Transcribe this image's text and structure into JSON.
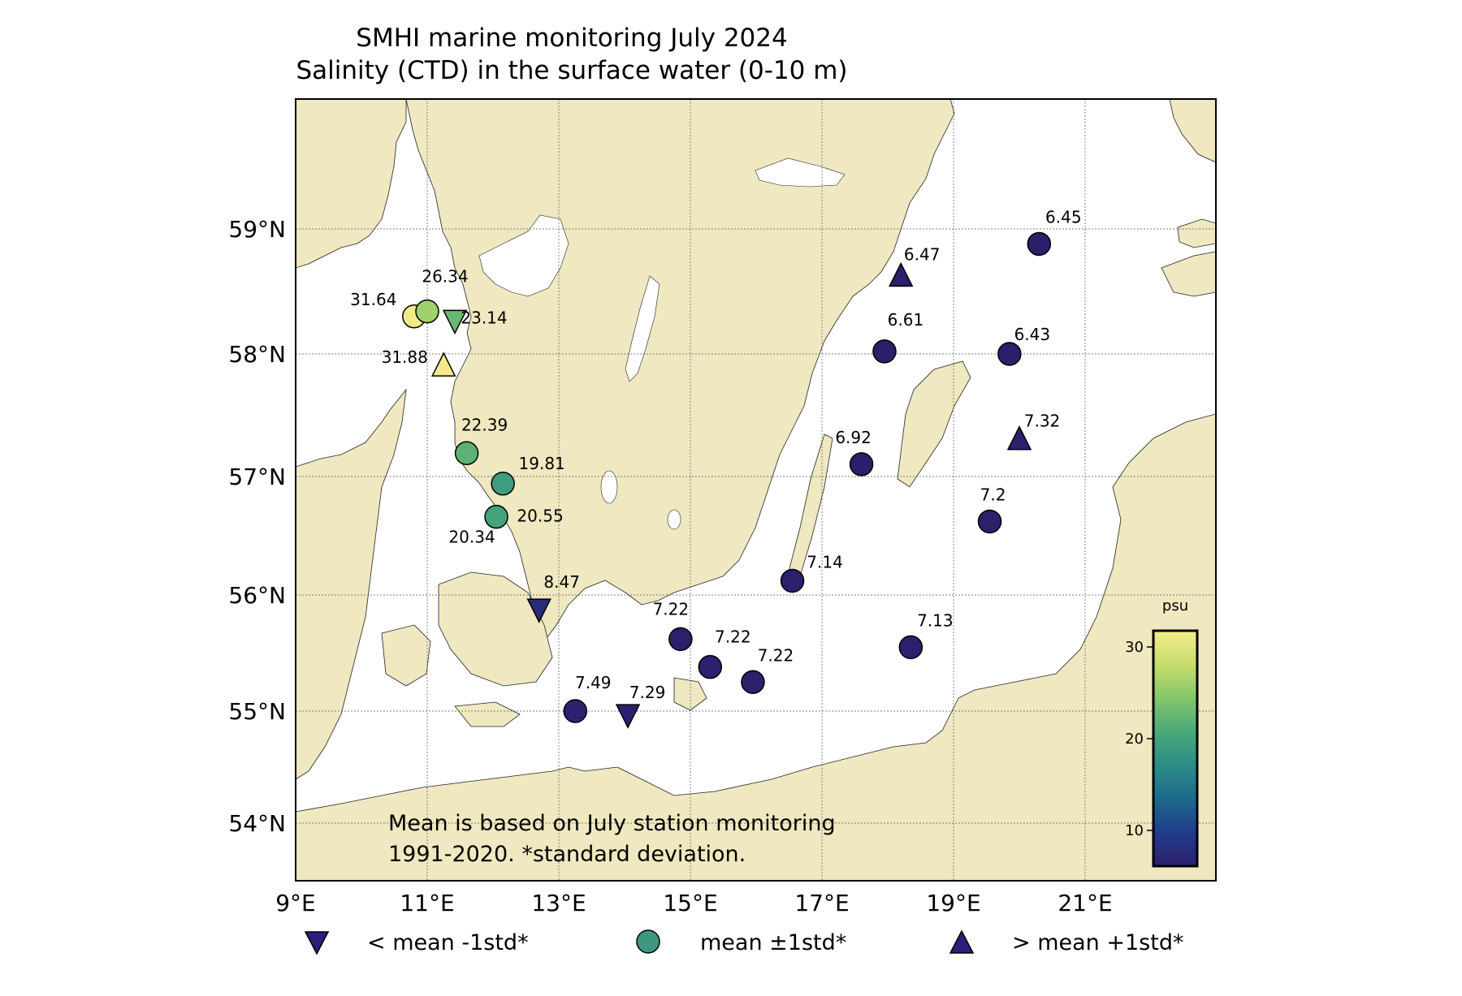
{
  "title": {
    "line1": "SMHI marine monitoring July 2024",
    "line2": "Salinity (CTD) in the surface water (0-10 m)"
  },
  "axes": {
    "lat_labels": [
      "59°N",
      "58°N",
      "57°N",
      "56°N",
      "55°N",
      "54°N"
    ],
    "lon_labels": [
      "9°E",
      "11°E",
      "13°E",
      "15°E",
      "17°E",
      "19°E",
      "21°E"
    ]
  },
  "note": {
    "line1": "Mean is based on July station monitoring",
    "line2": "1991-2020. *standard deviation."
  },
  "colorbar": {
    "unit": "psu",
    "ticks": [
      "30",
      "20",
      "10"
    ],
    "range": [
      7,
      32
    ],
    "colors": [
      "#2d1e6b",
      "#1f3d8a",
      "#1c6a8c",
      "#2c8d86",
      "#4aa97a",
      "#84c66a",
      "#c7dd6e",
      "#f5ec8c"
    ]
  },
  "legend": {
    "below": "< mean -1std*",
    "within": "mean ±1std*",
    "above": "> mean +1std*"
  },
  "chart_data": {
    "type": "scatter",
    "stations": [
      {
        "label": "6.45",
        "lon": 20.3,
        "lat": 58.88,
        "marker": "circle",
        "value": 6.45
      },
      {
        "label": "6.47",
        "lon": 18.2,
        "lat": 58.62,
        "marker": "triangle-up",
        "value": 6.47
      },
      {
        "label": "6.61",
        "lon": 17.95,
        "lat": 58.02,
        "marker": "circle",
        "value": 6.61
      },
      {
        "label": "6.43",
        "lon": 19.85,
        "lat": 58.0,
        "marker": "circle",
        "value": 6.43
      },
      {
        "label": "7.32",
        "lon": 20.0,
        "lat": 57.3,
        "marker": "triangle-up",
        "value": 7.32
      },
      {
        "label": "6.92",
        "lon": 17.6,
        "lat": 57.1,
        "marker": "circle",
        "value": 6.92
      },
      {
        "label": "7.2",
        "lon": 19.55,
        "lat": 56.62,
        "marker": "circle",
        "value": 7.2
      },
      {
        "label": "7.14",
        "lon": 16.55,
        "lat": 56.12,
        "marker": "circle",
        "value": 7.14
      },
      {
        "label": "7.13",
        "lon": 18.35,
        "lat": 55.55,
        "marker": "circle",
        "value": 7.13
      },
      {
        "label": "7.22",
        "lon": 14.85,
        "lat": 55.62,
        "marker": "circle",
        "value": 7.22
      },
      {
        "label": "7.22",
        "lon": 15.3,
        "lat": 55.38,
        "marker": "circle",
        "value": 7.22
      },
      {
        "label": "7.22",
        "lon": 15.95,
        "lat": 55.25,
        "marker": "circle",
        "value": 7.22
      },
      {
        "label": "7.49",
        "lon": 13.25,
        "lat": 55.0,
        "marker": "circle",
        "value": 7.49
      },
      {
        "label": "7.29",
        "lon": 14.05,
        "lat": 54.97,
        "marker": "triangle-down",
        "value": 7.29
      },
      {
        "label": "8.47",
        "lon": 12.7,
        "lat": 55.88,
        "marker": "triangle-down",
        "value": 8.47
      },
      {
        "label": "22.39",
        "lon": 11.6,
        "lat": 57.19,
        "marker": "circle",
        "value": 22.39
      },
      {
        "label": "19.81",
        "lon": 12.15,
        "lat": 56.94,
        "marker": "circle",
        "value": 19.81
      },
      {
        "label": "20.55",
        "lon": 12.05,
        "lat": 56.66,
        "marker": "circle",
        "value": 20.55
      },
      {
        "label": "20.34",
        "lon": 12.05,
        "lat": 56.66,
        "marker": "none",
        "value": 20.34
      },
      {
        "label": "31.64",
        "lon": 10.8,
        "lat": 58.3,
        "marker": "circle",
        "value": 31.64
      },
      {
        "label": "26.34",
        "lon": 11.0,
        "lat": 58.34,
        "marker": "circle",
        "value": 26.34
      },
      {
        "label": "23.14",
        "lon": 11.42,
        "lat": 58.27,
        "marker": "triangle-down",
        "value": 23.14
      },
      {
        "label": "31.88",
        "lon": 11.25,
        "lat": 57.9,
        "marker": "triangle-up",
        "value": 31.88
      }
    ],
    "xlim": [
      9,
      23
    ],
    "ylim": [
      53.5,
      60
    ],
    "grid": true
  }
}
